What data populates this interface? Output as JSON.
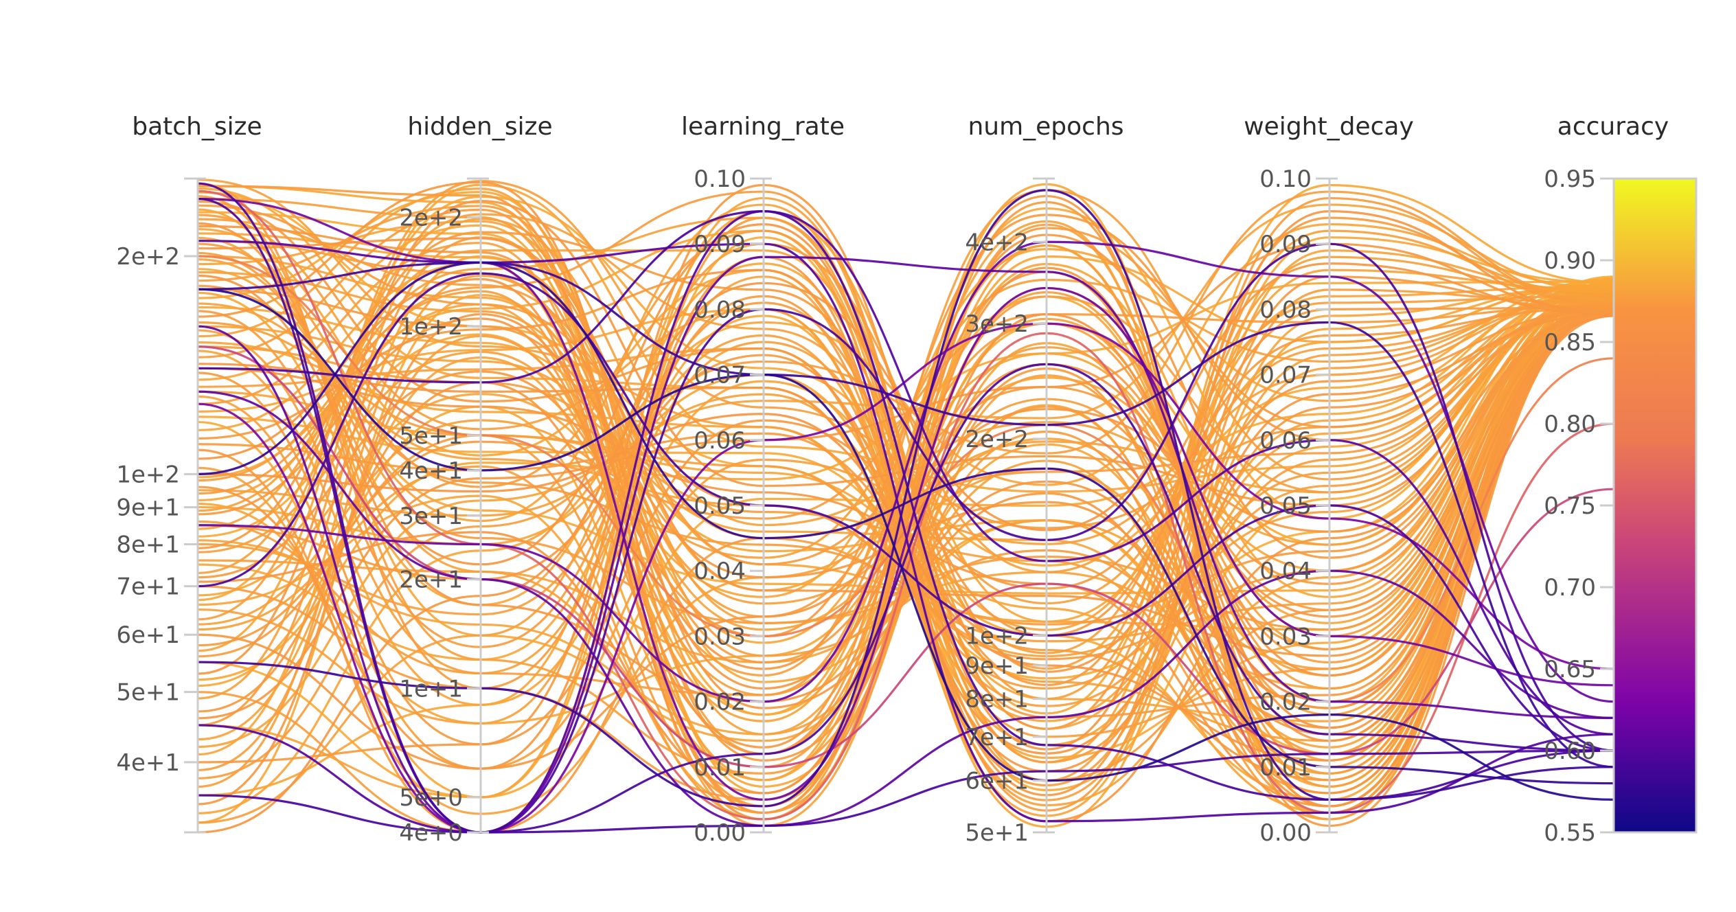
{
  "chart_data": {
    "type": "parallel_coordinates",
    "axes": [
      {
        "name": "batch_size",
        "scale": "log",
        "range": [
          32,
          256
        ],
        "ticks": [
          "2e+2",
          "1e+2",
          "9e+1",
          "8e+1",
          "7e+1",
          "6e+1",
          "5e+1",
          "4e+1"
        ],
        "tick_values": [
          200,
          100,
          90,
          80,
          70,
          60,
          50,
          40
        ]
      },
      {
        "name": "hidden_size",
        "scale": "log",
        "range": [
          4,
          256
        ],
        "ticks": [
          "2e+2",
          "1e+2",
          "5e+1",
          "4e+1",
          "3e+1",
          "2e+1",
          "1e+1",
          "5e+0",
          "4e+0"
        ],
        "tick_values": [
          200,
          100,
          50,
          40,
          30,
          20,
          10,
          5,
          4
        ]
      },
      {
        "name": "learning_rate",
        "scale": "linear",
        "range": [
          0,
          0.1
        ],
        "ticks": [
          "0.10",
          "0.09",
          "0.08",
          "0.07",
          "0.06",
          "0.05",
          "0.04",
          "0.03",
          "0.02",
          "0.01",
          "0.00"
        ],
        "tick_values": [
          0.1,
          0.09,
          0.08,
          0.07,
          0.06,
          0.05,
          0.04,
          0.03,
          0.02,
          0.01,
          0
        ]
      },
      {
        "name": "num_epochs",
        "scale": "log",
        "range": [
          50,
          500
        ],
        "ticks": [
          "4e+2",
          "3e+2",
          "2e+2",
          "1e+2",
          "9e+1",
          "8e+1",
          "7e+1",
          "6e+1",
          "5e+1"
        ],
        "tick_values": [
          400,
          300,
          200,
          100,
          90,
          80,
          70,
          60,
          50
        ]
      },
      {
        "name": "weight_decay",
        "scale": "linear",
        "range": [
          0,
          0.1
        ],
        "ticks": [
          "0.10",
          "0.09",
          "0.08",
          "0.07",
          "0.06",
          "0.05",
          "0.04",
          "0.03",
          "0.02",
          "0.01",
          "0.00"
        ],
        "tick_values": [
          0.1,
          0.09,
          0.08,
          0.07,
          0.06,
          0.05,
          0.04,
          0.03,
          0.02,
          0.01,
          0
        ]
      },
      {
        "name": "accuracy",
        "scale": "linear",
        "range": [
          0.55,
          0.95
        ],
        "ticks": [
          "0.95",
          "0.90",
          "0.85",
          "0.80",
          "0.75",
          "0.70",
          "0.65",
          "0.60",
          "0.55"
        ],
        "tick_values": [
          0.95,
          0.9,
          0.85,
          0.8,
          0.75,
          0.7,
          0.65,
          0.6,
          0.55
        ],
        "colorbar": true
      }
    ],
    "colorscale": "plasma",
    "color_by": "accuracy",
    "colors": {
      "axis": "#cccccc",
      "low": "#0d0887",
      "high": "#f0f921"
    },
    "runs": [
      [
        250,
        230,
        0.003,
        420,
        0.062,
        0.872
      ],
      [
        250,
        220,
        0.006,
        380,
        0.075,
        0.885
      ],
      [
        240,
        200,
        0.012,
        330,
        0.052,
        0.878
      ],
      [
        230,
        180,
        0.018,
        300,
        0.044,
        0.89
      ],
      [
        220,
        160,
        0.022,
        260,
        0.033,
        0.868
      ],
      [
        210,
        140,
        0.026,
        230,
        0.028,
        0.874
      ],
      [
        200,
        120,
        0.031,
        200,
        0.024,
        0.882
      ],
      [
        190,
        110,
        0.035,
        180,
        0.019,
        0.879
      ],
      [
        180,
        100,
        0.039,
        160,
        0.015,
        0.87
      ],
      [
        170,
        90,
        0.043,
        150,
        0.012,
        0.887
      ],
      [
        160,
        80,
        0.046,
        140,
        0.009,
        0.881
      ],
      [
        150,
        70,
        0.049,
        130,
        0.006,
        0.876
      ],
      [
        140,
        60,
        0.052,
        120,
        0.004,
        0.869
      ],
      [
        130,
        50,
        0.055,
        110,
        0.003,
        0.883
      ],
      [
        120,
        45,
        0.058,
        100,
        0.005,
        0.888
      ],
      [
        110,
        40,
        0.061,
        95,
        0.008,
        0.872
      ],
      [
        100,
        35,
        0.064,
        90,
        0.011,
        0.866
      ],
      [
        95,
        30,
        0.067,
        85,
        0.014,
        0.879
      ],
      [
        90,
        25,
        0.07,
        80,
        0.017,
        0.884
      ],
      [
        85,
        20,
        0.073,
        75,
        0.021,
        0.871
      ],
      [
        80,
        16,
        0.076,
        70,
        0.025,
        0.877
      ],
      [
        75,
        12,
        0.079,
        65,
        0.029,
        0.886
      ],
      [
        70,
        10,
        0.082,
        60,
        0.034,
        0.873
      ],
      [
        65,
        8,
        0.085,
        55,
        0.039,
        0.88
      ],
      [
        60,
        6,
        0.088,
        52,
        0.045,
        0.868
      ],
      [
        55,
        5,
        0.091,
        58,
        0.051,
        0.889
      ],
      [
        50,
        4,
        0.094,
        64,
        0.057,
        0.875
      ],
      [
        45,
        5,
        0.097,
        72,
        0.063,
        0.882
      ],
      [
        40,
        7,
        0.099,
        88,
        0.069,
        0.87
      ],
      [
        36,
        9,
        0.095,
        105,
        0.075,
        0.885
      ],
      [
        33,
        14,
        0.09,
        125,
        0.081,
        0.878
      ],
      [
        32,
        18,
        0.084,
        145,
        0.087,
        0.867
      ],
      [
        34,
        24,
        0.078,
        170,
        0.093,
        0.883
      ],
      [
        38,
        28,
        0.072,
        190,
        0.098,
        0.874
      ],
      [
        42,
        33,
        0.066,
        215,
        0.096,
        0.881
      ],
      [
        46,
        38,
        0.06,
        240,
        0.09,
        0.869
      ],
      [
        52,
        42,
        0.054,
        270,
        0.084,
        0.887
      ],
      [
        58,
        48,
        0.048,
        310,
        0.078,
        0.872
      ],
      [
        62,
        55,
        0.042,
        350,
        0.072,
        0.879
      ],
      [
        68,
        65,
        0.036,
        390,
        0.066,
        0.884
      ],
      [
        72,
        75,
        0.03,
        440,
        0.06,
        0.871
      ],
      [
        78,
        85,
        0.024,
        480,
        0.054,
        0.876
      ],
      [
        82,
        95,
        0.018,
        450,
        0.048,
        0.888
      ],
      [
        88,
        105,
        0.012,
        410,
        0.042,
        0.87
      ],
      [
        92,
        115,
        0.008,
        370,
        0.036,
        0.883
      ],
      [
        98,
        125,
        0.004,
        340,
        0.03,
        0.875
      ],
      [
        105,
        135,
        0.002,
        310,
        0.024,
        0.866
      ],
      [
        115,
        150,
        0.001,
        280,
        0.018,
        0.882
      ],
      [
        125,
        170,
        0.003,
        250,
        0.012,
        0.878
      ],
      [
        135,
        190,
        0.007,
        225,
        0.007,
        0.886
      ],
      [
        145,
        210,
        0.011,
        205,
        0.003,
        0.873
      ],
      [
        155,
        240,
        0.015,
        185,
        0.002,
        0.88
      ],
      [
        165,
        250,
        0.019,
        165,
        0.006,
        0.869
      ],
      [
        175,
        235,
        0.023,
        150,
        0.01,
        0.887
      ],
      [
        185,
        215,
        0.027,
        135,
        0.016,
        0.874
      ],
      [
        195,
        195,
        0.032,
        125,
        0.022,
        0.881
      ],
      [
        205,
        175,
        0.037,
        115,
        0.027,
        0.868
      ],
      [
        215,
        155,
        0.041,
        105,
        0.031,
        0.884
      ],
      [
        225,
        130,
        0.045,
        98,
        0.035,
        0.877
      ],
      [
        235,
        115,
        0.05,
        92,
        0.04,
        0.872
      ],
      [
        245,
        100,
        0.056,
        86,
        0.046,
        0.889
      ],
      [
        255,
        88,
        0.062,
        78,
        0.053,
        0.876
      ],
      [
        248,
        72,
        0.068,
        68,
        0.059,
        0.883
      ],
      [
        238,
        62,
        0.074,
        62,
        0.065,
        0.87
      ],
      [
        228,
        52,
        0.08,
        56,
        0.071,
        0.878
      ],
      [
        218,
        44,
        0.086,
        51,
        0.077,
        0.885
      ],
      [
        208,
        36,
        0.092,
        54,
        0.083,
        0.874
      ],
      [
        198,
        29,
        0.096,
        60,
        0.089,
        0.881
      ],
      [
        188,
        22,
        0.093,
        67,
        0.095,
        0.867
      ],
      [
        178,
        17,
        0.087,
        76,
        0.099,
        0.886
      ],
      [
        168,
        13,
        0.081,
        84,
        0.094,
        0.873
      ],
      [
        158,
        11,
        0.075,
        94,
        0.088,
        0.879
      ],
      [
        148,
        9,
        0.069,
        102,
        0.082,
        0.884
      ],
      [
        138,
        7,
        0.063,
        118,
        0.076,
        0.871
      ],
      [
        128,
        6,
        0.057,
        138,
        0.07,
        0.877
      ],
      [
        118,
        5,
        0.051,
        158,
        0.064,
        0.888
      ],
      [
        108,
        4,
        0.045,
        178,
        0.058,
        0.872
      ],
      [
        102,
        4.5,
        0.039,
        198,
        0.052,
        0.88
      ],
      [
        96,
        6,
        0.033,
        222,
        0.046,
        0.869
      ],
      [
        91,
        8,
        0.027,
        248,
        0.04,
        0.885
      ],
      [
        86,
        11,
        0.021,
        276,
        0.034,
        0.874
      ],
      [
        81,
        15,
        0.015,
        305,
        0.028,
        0.882
      ],
      [
        76,
        21,
        0.01,
        335,
        0.022,
        0.876
      ],
      [
        71,
        27,
        0.006,
        365,
        0.016,
        0.867
      ],
      [
        66,
        34,
        0.003,
        395,
        0.011,
        0.884
      ],
      [
        61,
        41,
        0.002,
        425,
        0.007,
        0.879
      ],
      [
        56,
        50,
        0.004,
        460,
        0.004,
        0.873
      ],
      [
        51,
        60,
        0.008,
        490,
        0.002,
        0.887
      ],
      [
        47,
        70,
        0.013,
        470,
        0.001,
        0.87
      ],
      [
        43,
        82,
        0.017,
        430,
        0.004,
        0.881
      ],
      [
        39,
        94,
        0.021,
        395,
        0.009,
        0.875
      ],
      [
        35,
        108,
        0.025,
        360,
        0.014,
        0.868
      ],
      [
        33,
        122,
        0.029,
        330,
        0.02,
        0.886
      ],
      [
        37,
        138,
        0.033,
        300,
        0.026,
        0.877
      ],
      [
        41,
        156,
        0.037,
        270,
        0.032,
        0.883
      ],
      [
        45,
        176,
        0.041,
        240,
        0.038,
        0.872
      ],
      [
        49,
        198,
        0.047,
        212,
        0.044,
        0.88
      ],
      [
        53,
        222,
        0.053,
        188,
        0.05,
        0.869
      ],
      [
        57,
        246,
        0.059,
        166,
        0.056,
        0.885
      ],
      [
        63,
        252,
        0.065,
        146,
        0.062,
        0.874
      ],
      [
        67,
        228,
        0.071,
        128,
        0.068,
        0.888
      ],
      [
        73,
        204,
        0.077,
        112,
        0.074,
        0.876
      ],
      [
        79,
        182,
        0.083,
        100,
        0.08,
        0.871
      ],
      [
        84,
        162,
        0.089,
        89,
        0.086,
        0.882
      ],
      [
        89,
        144,
        0.094,
        80,
        0.092,
        0.879
      ],
      [
        94,
        128,
        0.098,
        72,
        0.097,
        0.873
      ],
      [
        99,
        112,
        0.092,
        64,
        0.091,
        0.886
      ],
      [
        112,
        98,
        0.086,
        57,
        0.085,
        0.87
      ],
      [
        122,
        86,
        0.08,
        53,
        0.079,
        0.884
      ],
      [
        132,
        76,
        0.074,
        59,
        0.073,
        0.877
      ],
      [
        142,
        66,
        0.068,
        66,
        0.067,
        0.867
      ],
      [
        152,
        58,
        0.062,
        74,
        0.061,
        0.883
      ],
      [
        162,
        50,
        0.056,
        83,
        0.055,
        0.875
      ],
      [
        172,
        43,
        0.05,
        93,
        0.049,
        0.88
      ],
      [
        182,
        37,
        0.044,
        104,
        0.043,
        0.872
      ],
      [
        192,
        31,
        0.038,
        116,
        0.037,
        0.887
      ],
      [
        202,
        26,
        0.032,
        132,
        0.031,
        0.874
      ],
      [
        212,
        21,
        0.026,
        150,
        0.025,
        0.881
      ],
      [
        222,
        17,
        0.02,
        172,
        0.019,
        0.868
      ],
      [
        232,
        14,
        0.014,
        196,
        0.013,
        0.885
      ],
      [
        242,
        12,
        0.009,
        224,
        0.008,
        0.878
      ],
      [
        252,
        10,
        0.005,
        256,
        0.004,
        0.872
      ],
      [
        246,
        25,
        0.002,
        290,
        0.003,
        0.8
      ],
      [
        200,
        50,
        0.03,
        210,
        0.02,
        0.84
      ],
      [
        150,
        20,
        0.01,
        120,
        0.012,
        0.76
      ],
      [
        252,
        4,
        0.001,
        62,
        0.012,
        0.6
      ],
      [
        240,
        4,
        0.08,
        140,
        0.09,
        0.6
      ],
      [
        210,
        150,
        0.09,
        52,
        0.003,
        0.61
      ],
      [
        180,
        150,
        0.07,
        210,
        0.078,
        0.59
      ],
      [
        160,
        4,
        0.088,
        360,
        0.02,
        0.62
      ],
      [
        140,
        70,
        0.095,
        68,
        0.005,
        0.6
      ],
      [
        125,
        4,
        0.06,
        300,
        0.048,
        0.65
      ],
      [
        100,
        150,
        0.045,
        180,
        0.01,
        0.58
      ],
      [
        85,
        25,
        0.02,
        400,
        0.085,
        0.63
      ],
      [
        70,
        140,
        0.05,
        100,
        0.05,
        0.6
      ],
      [
        55,
        10,
        0.004,
        480,
        0.005,
        0.59
      ],
      [
        45,
        4,
        0.095,
        130,
        0.06,
        0.61
      ],
      [
        36,
        4,
        0.012,
        260,
        0.015,
        0.6
      ],
      [
        180,
        40,
        0.07,
        60,
        0.018,
        0.57
      ],
      [
        240,
        150,
        0.005,
        340,
        0.03,
        0.64
      ],
      [
        130,
        20,
        0.001,
        75,
        0.04,
        0.62
      ]
    ]
  }
}
